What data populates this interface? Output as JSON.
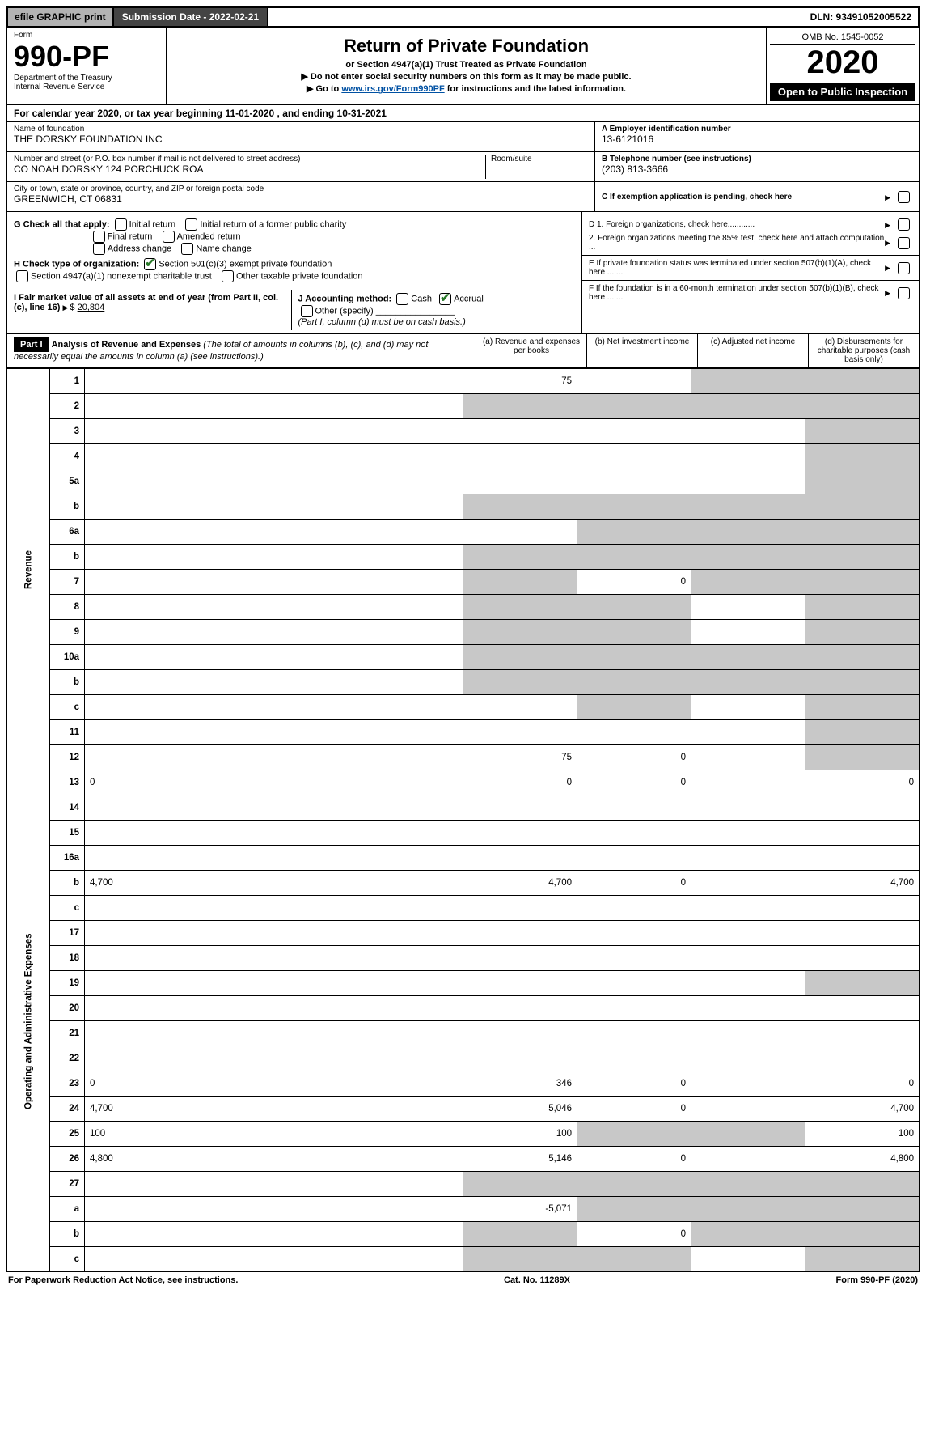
{
  "topbar": {
    "efile": "efile GRAPHIC print",
    "sub_label": "Submission Date - 2022-02-21",
    "dln": "DLN: 93491052005522"
  },
  "header": {
    "form_label": "Form",
    "form_number": "990-PF",
    "dept": "Department of the Treasury",
    "irs": "Internal Revenue Service",
    "title": "Return of Private Foundation",
    "subtitle": "or Section 4947(a)(1) Trust Treated as Private Foundation",
    "note1": "▶ Do not enter social security numbers on this form as it may be made public.",
    "note2_pre": "▶ Go to ",
    "note2_link": "www.irs.gov/Form990PF",
    "note2_post": " for instructions and the latest information.",
    "omb": "OMB No. 1545-0052",
    "year": "2020",
    "open": "Open to Public Inspection"
  },
  "calendar": {
    "text_pre": "For calendar year 2020, or tax year beginning ",
    "begin": "11-01-2020",
    "text_mid": " , and ending ",
    "end": "10-31-2021"
  },
  "entity": {
    "name_label": "Name of foundation",
    "name": "THE DORSKY FOUNDATION INC",
    "addr_label": "Number and street (or P.O. box number if mail is not delivered to street address)",
    "addr": "CO NOAH DORSKY 124 PORCHUCK ROA",
    "room_label": "Room/suite",
    "city_label": "City or town, state or province, country, and ZIP or foreign postal code",
    "city": "GREENWICH, CT  06831",
    "A_label": "A Employer identification number",
    "A_val": "13-6121016",
    "B_label": "B Telephone number (see instructions)",
    "B_val": "(203) 813-3666",
    "C_label": "C If exemption application is pending, check here"
  },
  "G": {
    "label": "G Check all that apply:",
    "opts": [
      "Initial return",
      "Final return",
      "Address change",
      "Initial return of a former public charity",
      "Amended return",
      "Name change"
    ]
  },
  "H": {
    "label": "H Check type of organization:",
    "opt1": "Section 501(c)(3) exempt private foundation",
    "opt2": "Section 4947(a)(1) nonexempt charitable trust",
    "opt3": "Other taxable private foundation"
  },
  "I": {
    "label": "I Fair market value of all assets at end of year (from Part II, col. (c), line 16)",
    "val": "20,804"
  },
  "J": {
    "label": "J Accounting method:",
    "cash": "Cash",
    "accrual": "Accrual",
    "other": "Other (specify)",
    "note": "(Part I, column (d) must be on cash basis.)"
  },
  "D": {
    "d1": "D 1. Foreign organizations, check here............",
    "d2": "2. Foreign organizations meeting the 85% test, check here and attach computation ..."
  },
  "E": "E  If private foundation status was terminated under section 507(b)(1)(A), check here .......",
  "F": "F  If the foundation is in a 60-month termination under section 507(b)(1)(B), check here .......",
  "part1": {
    "label": "Part I",
    "title": "Analysis of Revenue and Expenses",
    "title_note": " (The total of amounts in columns (b), (c), and (d) may not necessarily equal the amounts in column (a) (see instructions).)",
    "cols": {
      "a": "(a) Revenue and expenses per books",
      "b": "(b) Net investment income",
      "c": "(c) Adjusted net income",
      "d": "(d) Disbursements for charitable purposes (cash basis only)"
    }
  },
  "sections": {
    "revenue": "Revenue",
    "opex": "Operating and Administrative Expenses"
  },
  "rows": [
    {
      "n": "1",
      "d": "",
      "a": "75",
      "b": "",
      "c": "",
      "d_shade": true,
      "c_shade": true
    },
    {
      "n": "2",
      "d": "",
      "a": "",
      "b": "",
      "c": "",
      "a_shade": true,
      "b_shade": true,
      "c_shade": true,
      "d_shade": true
    },
    {
      "n": "3",
      "d": "",
      "a": "",
      "b": "",
      "c": "",
      "d_shade": true
    },
    {
      "n": "4",
      "d": "",
      "a": "",
      "b": "",
      "c": "",
      "d_shade": true
    },
    {
      "n": "5a",
      "d": "",
      "a": "",
      "b": "",
      "c": "",
      "d_shade": true
    },
    {
      "n": "b",
      "d": "",
      "a": "",
      "b": "",
      "c": "",
      "a_shade": true,
      "b_shade": true,
      "c_shade": true,
      "d_shade": true
    },
    {
      "n": "6a",
      "d": "",
      "a": "",
      "b": "",
      "c": "",
      "b_shade": true,
      "c_shade": true,
      "d_shade": true
    },
    {
      "n": "b",
      "d": "",
      "a": "",
      "b": "",
      "c": "",
      "a_shade": true,
      "b_shade": true,
      "c_shade": true,
      "d_shade": true
    },
    {
      "n": "7",
      "d": "",
      "a": "",
      "b": "0",
      "c": "",
      "a_shade": true,
      "c_shade": true,
      "d_shade": true
    },
    {
      "n": "8",
      "d": "",
      "a": "",
      "b": "",
      "c": "",
      "a_shade": true,
      "b_shade": true,
      "d_shade": true
    },
    {
      "n": "9",
      "d": "",
      "a": "",
      "b": "",
      "c": "",
      "a_shade": true,
      "b_shade": true,
      "d_shade": true
    },
    {
      "n": "10a",
      "d": "",
      "a": "",
      "b": "",
      "c": "",
      "a_shade": true,
      "b_shade": true,
      "c_shade": true,
      "d_shade": true
    },
    {
      "n": "b",
      "d": "",
      "a": "",
      "b": "",
      "c": "",
      "a_shade": true,
      "b_shade": true,
      "c_shade": true,
      "d_shade": true
    },
    {
      "n": "c",
      "d": "",
      "a": "",
      "b": "",
      "c": "",
      "b_shade": true,
      "d_shade": true
    },
    {
      "n": "11",
      "d": "",
      "a": "",
      "b": "",
      "c": "",
      "d_shade": true
    },
    {
      "n": "12",
      "d": "",
      "a": "75",
      "b": "0",
      "c": "",
      "d_shade": true
    },
    {
      "n": "13",
      "d": "0",
      "a": "0",
      "b": "0",
      "c": ""
    },
    {
      "n": "14",
      "d": "",
      "a": "",
      "b": "",
      "c": ""
    },
    {
      "n": "15",
      "d": "",
      "a": "",
      "b": "",
      "c": ""
    },
    {
      "n": "16a",
      "d": "",
      "a": "",
      "b": "",
      "c": ""
    },
    {
      "n": "b",
      "d": "4,700",
      "a": "4,700",
      "b": "0",
      "c": ""
    },
    {
      "n": "c",
      "d": "",
      "a": "",
      "b": "",
      "c": ""
    },
    {
      "n": "17",
      "d": "",
      "a": "",
      "b": "",
      "c": ""
    },
    {
      "n": "18",
      "d": "",
      "a": "",
      "b": "",
      "c": ""
    },
    {
      "n": "19",
      "d": "",
      "a": "",
      "b": "",
      "c": "",
      "d_shade": true
    },
    {
      "n": "20",
      "d": "",
      "a": "",
      "b": "",
      "c": ""
    },
    {
      "n": "21",
      "d": "",
      "a": "",
      "b": "",
      "c": ""
    },
    {
      "n": "22",
      "d": "",
      "a": "",
      "b": "",
      "c": ""
    },
    {
      "n": "23",
      "d": "0",
      "a": "346",
      "b": "0",
      "c": ""
    },
    {
      "n": "24",
      "d": "4,700",
      "a": "5,046",
      "b": "0",
      "c": ""
    },
    {
      "n": "25",
      "d": "100",
      "a": "100",
      "b": "",
      "c": "",
      "b_shade": true,
      "c_shade": true
    },
    {
      "n": "26",
      "d": "4,800",
      "a": "5,146",
      "b": "0",
      "c": ""
    },
    {
      "n": "27",
      "d": "",
      "a": "",
      "b": "",
      "c": "",
      "a_shade": true,
      "b_shade": true,
      "c_shade": true,
      "d_shade": true
    },
    {
      "n": "a",
      "d": "",
      "a": "-5,071",
      "b": "",
      "c": "",
      "b_shade": true,
      "c_shade": true,
      "d_shade": true
    },
    {
      "n": "b",
      "d": "",
      "a": "",
      "b": "0",
      "c": "",
      "a_shade": true,
      "c_shade": true,
      "d_shade": true
    },
    {
      "n": "c",
      "d": "",
      "a": "",
      "b": "",
      "c": "",
      "a_shade": true,
      "b_shade": true,
      "d_shade": true
    }
  ],
  "footer": {
    "left": "For Paperwork Reduction Act Notice, see instructions.",
    "mid": "Cat. No. 11289X",
    "right": "Form 990-PF (2020)"
  },
  "colors": {
    "shade": "#c8c8c8",
    "black": "#000000",
    "link": "#0051a3",
    "check": "#2a7a2a"
  }
}
